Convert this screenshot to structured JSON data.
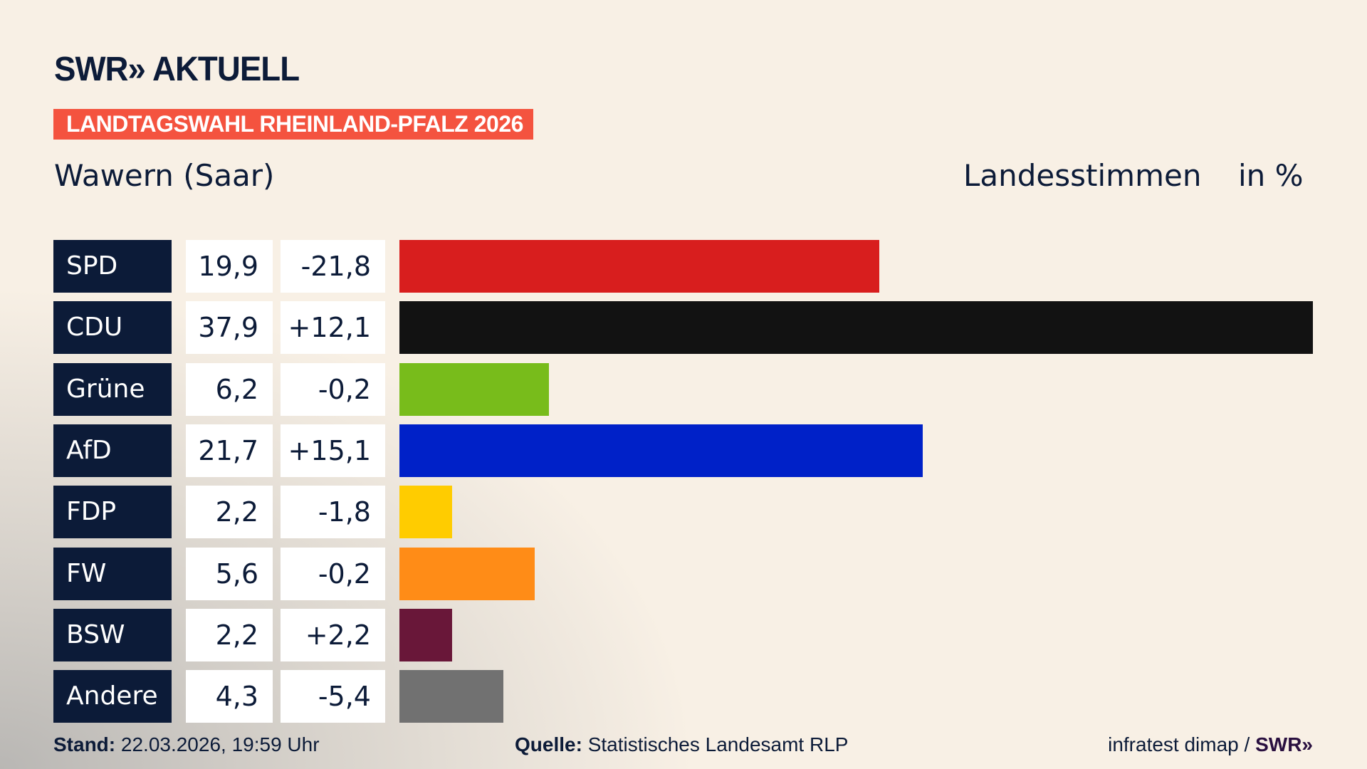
{
  "header": {
    "logo": "SWR» AKTUELL",
    "banner": "LANDTAGSWAHL RHEINLAND-PFALZ 2026",
    "title": "Wawern (Saar)",
    "measure": "Landesstimmen",
    "unit": "in %"
  },
  "chart_data": {
    "type": "bar",
    "orientation": "horizontal",
    "categories": [
      "SPD",
      "CDU",
      "Grüne",
      "AfD",
      "FDP",
      "FW",
      "BSW",
      "Andere"
    ],
    "values": [
      19.9,
      37.9,
      6.2,
      21.7,
      2.2,
      5.6,
      2.2,
      4.3
    ],
    "value_labels": [
      "19,9",
      "37,9",
      "6,2",
      "21,7",
      "2,2",
      "5,6",
      "2,2",
      "4,3"
    ],
    "diff_labels": [
      "-21,8",
      "+12,1",
      "-0,2",
      "+15,1",
      "-1,8",
      "-0,2",
      "+2,2",
      "-5,4"
    ],
    "colors": [
      "#d81e1e",
      "#121212",
      "#78bc1b",
      "#0021c8",
      "#ffcc00",
      "#ff8c17",
      "#691739",
      "#717171"
    ],
    "xlim": [
      0,
      37.9
    ],
    "grid": false
  },
  "footer": {
    "stand_label": "Stand:",
    "stand_value": " 22.03.2026, 19:59 Uhr",
    "source_label": "Quelle:",
    "source_value": " Statistisches Landesamt RLP",
    "credit": "infratest dimap / ",
    "credit_logo": "SWR»"
  }
}
